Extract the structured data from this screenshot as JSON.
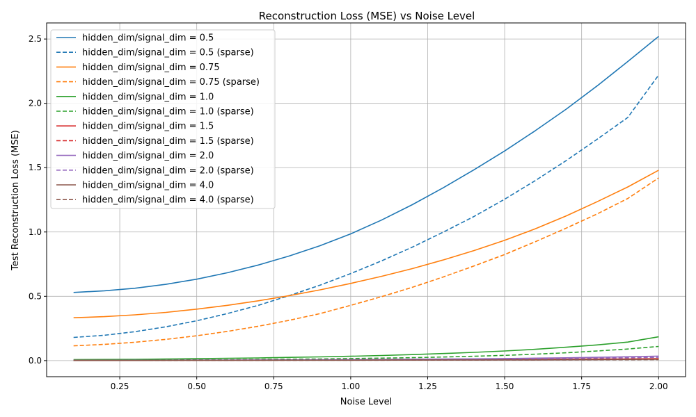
{
  "chart_data": {
    "type": "line",
    "title": "Reconstruction Loss (MSE) vs Noise Level",
    "xlabel": "Noise Level",
    "ylabel": "Test Reconstruction Loss (MSE)",
    "xlim": [
      0.0125,
      2.0875
    ],
    "ylim": [
      -0.125,
      2.625
    ],
    "xticks": [
      0.25,
      0.5,
      0.75,
      1.0,
      1.25,
      1.5,
      1.75,
      2.0
    ],
    "xtick_labels": [
      "0.25",
      "0.50",
      "0.75",
      "1.00",
      "1.25",
      "1.50",
      "1.75",
      "2.00"
    ],
    "yticks": [
      0.0,
      0.5,
      1.0,
      1.5,
      2.0,
      2.5
    ],
    "ytick_labels": [
      "0.0",
      "0.5",
      "1.0",
      "1.5",
      "2.0",
      "2.5"
    ],
    "grid": true,
    "legend_position": "top-left",
    "x": [
      0.1,
      0.2,
      0.3,
      0.4,
      0.5,
      0.6,
      0.7,
      0.8,
      0.9,
      1.0,
      1.1,
      1.2,
      1.3,
      1.4,
      1.5,
      1.6,
      1.7,
      1.8,
      1.9,
      2.0
    ],
    "series": [
      {
        "name": "hidden_dim/signal_dim = 0.5",
        "color": "#1f77b4",
        "dash": "solid",
        "values": [
          0.53,
          0.543,
          0.563,
          0.593,
          0.633,
          0.683,
          0.743,
          0.813,
          0.893,
          0.985,
          1.092,
          1.212,
          1.343,
          1.483,
          1.63,
          1.788,
          1.955,
          2.135,
          2.325,
          2.52
        ]
      },
      {
        "name": "hidden_dim/signal_dim = 0.5 (sparse)",
        "color": "#1f77b4",
        "dash": "dashed",
        "values": [
          0.18,
          0.197,
          0.225,
          0.263,
          0.31,
          0.366,
          0.43,
          0.505,
          0.586,
          0.677,
          0.775,
          0.882,
          0.998,
          1.12,
          1.255,
          1.4,
          1.555,
          1.72,
          1.89,
          2.22
        ]
      },
      {
        "name": "hidden_dim/signal_dim = 0.75",
        "color": "#ff7f0e",
        "dash": "solid",
        "values": [
          0.333,
          0.342,
          0.356,
          0.375,
          0.4,
          0.43,
          0.465,
          0.505,
          0.55,
          0.6,
          0.655,
          0.715,
          0.782,
          0.855,
          0.935,
          1.025,
          1.125,
          1.235,
          1.35,
          1.48
        ]
      },
      {
        "name": "hidden_dim/signal_dim = 0.75 (sparse)",
        "color": "#ff7f0e",
        "dash": "dashed",
        "values": [
          0.115,
          0.126,
          0.143,
          0.165,
          0.193,
          0.227,
          0.267,
          0.313,
          0.365,
          0.43,
          0.497,
          0.57,
          0.65,
          0.735,
          0.825,
          0.925,
          1.03,
          1.14,
          1.26,
          1.42
        ]
      },
      {
        "name": "hidden_dim/signal_dim = 1.0",
        "color": "#2ca02c",
        "dash": "solid",
        "values": [
          0.008,
          0.009,
          0.01,
          0.012,
          0.015,
          0.018,
          0.021,
          0.025,
          0.029,
          0.034,
          0.04,
          0.047,
          0.055,
          0.064,
          0.075,
          0.088,
          0.104,
          0.122,
          0.144,
          0.185
        ]
      },
      {
        "name": "hidden_dim/signal_dim = 1.0 (sparse)",
        "color": "#2ca02c",
        "dash": "dashed",
        "values": [
          0.003,
          0.003,
          0.004,
          0.005,
          0.006,
          0.007,
          0.009,
          0.011,
          0.013,
          0.016,
          0.019,
          0.023,
          0.028,
          0.034,
          0.041,
          0.05,
          0.061,
          0.075,
          0.09,
          0.11
        ]
      },
      {
        "name": "hidden_dim/signal_dim = 1.5",
        "color": "#d62728",
        "dash": "solid",
        "values": [
          0.002,
          0.002,
          0.002,
          0.003,
          0.003,
          0.003,
          0.004,
          0.004,
          0.005,
          0.005,
          0.006,
          0.006,
          0.007,
          0.008,
          0.009,
          0.01,
          0.011,
          0.012,
          0.013,
          0.015
        ]
      },
      {
        "name": "hidden_dim/signal_dim = 1.5 (sparse)",
        "color": "#d62728",
        "dash": "dashed",
        "values": [
          0.002,
          0.002,
          0.002,
          0.002,
          0.003,
          0.003,
          0.003,
          0.004,
          0.004,
          0.005,
          0.005,
          0.006,
          0.006,
          0.007,
          0.008,
          0.009,
          0.01,
          0.011,
          0.012,
          0.013
        ]
      },
      {
        "name": "hidden_dim/signal_dim = 2.0",
        "color": "#9467bd",
        "dash": "solid",
        "values": [
          0.002,
          0.002,
          0.003,
          0.003,
          0.004,
          0.004,
          0.005,
          0.006,
          0.007,
          0.008,
          0.009,
          0.011,
          0.012,
          0.014,
          0.016,
          0.019,
          0.022,
          0.026,
          0.03,
          0.035
        ]
      },
      {
        "name": "hidden_dim/signal_dim = 2.0 (sparse)",
        "color": "#9467bd",
        "dash": "dashed",
        "values": [
          0.002,
          0.002,
          0.002,
          0.003,
          0.003,
          0.003,
          0.004,
          0.005,
          0.005,
          0.006,
          0.007,
          0.008,
          0.009,
          0.011,
          0.012,
          0.014,
          0.016,
          0.019,
          0.022,
          0.026
        ]
      },
      {
        "name": "hidden_dim/signal_dim = 4.0",
        "color": "#8c564b",
        "dash": "solid",
        "values": [
          0.001,
          0.001,
          0.001,
          0.002,
          0.002,
          0.002,
          0.002,
          0.003,
          0.003,
          0.003,
          0.004,
          0.004,
          0.005,
          0.005,
          0.006,
          0.006,
          0.007,
          0.008,
          0.009,
          0.01
        ]
      },
      {
        "name": "hidden_dim/signal_dim = 4.0 (sparse)",
        "color": "#8c564b",
        "dash": "dashed",
        "values": [
          0.001,
          0.001,
          0.001,
          0.001,
          0.002,
          0.002,
          0.002,
          0.002,
          0.003,
          0.003,
          0.003,
          0.004,
          0.004,
          0.004,
          0.005,
          0.005,
          0.006,
          0.007,
          0.007,
          0.008
        ]
      }
    ]
  }
}
